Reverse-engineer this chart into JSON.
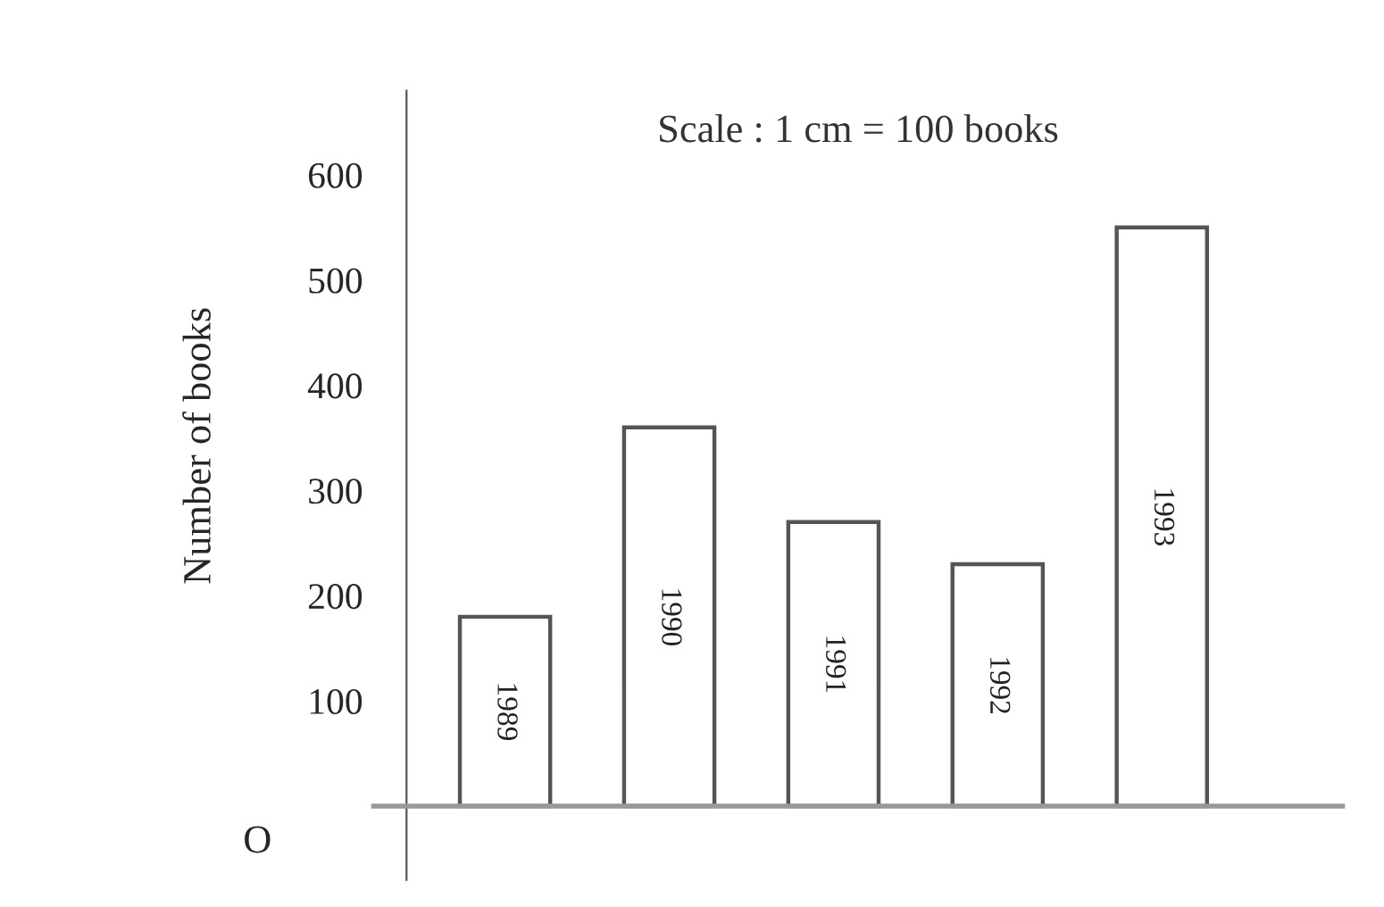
{
  "chart_data": {
    "type": "bar",
    "categories": [
      "1989",
      "1990",
      "1991",
      "1992",
      "1993"
    ],
    "values": [
      180,
      360,
      270,
      230,
      550
    ],
    "color": "#ffffff",
    "ylabel": "Number of books",
    "ylim": [
      -70,
      680
    ],
    "yticks": [
      100,
      200,
      300,
      400,
      500,
      600
    ],
    "annotations": [
      "Scale : 1 cm = 100 books",
      "O"
    ],
    "grid": false
  }
}
